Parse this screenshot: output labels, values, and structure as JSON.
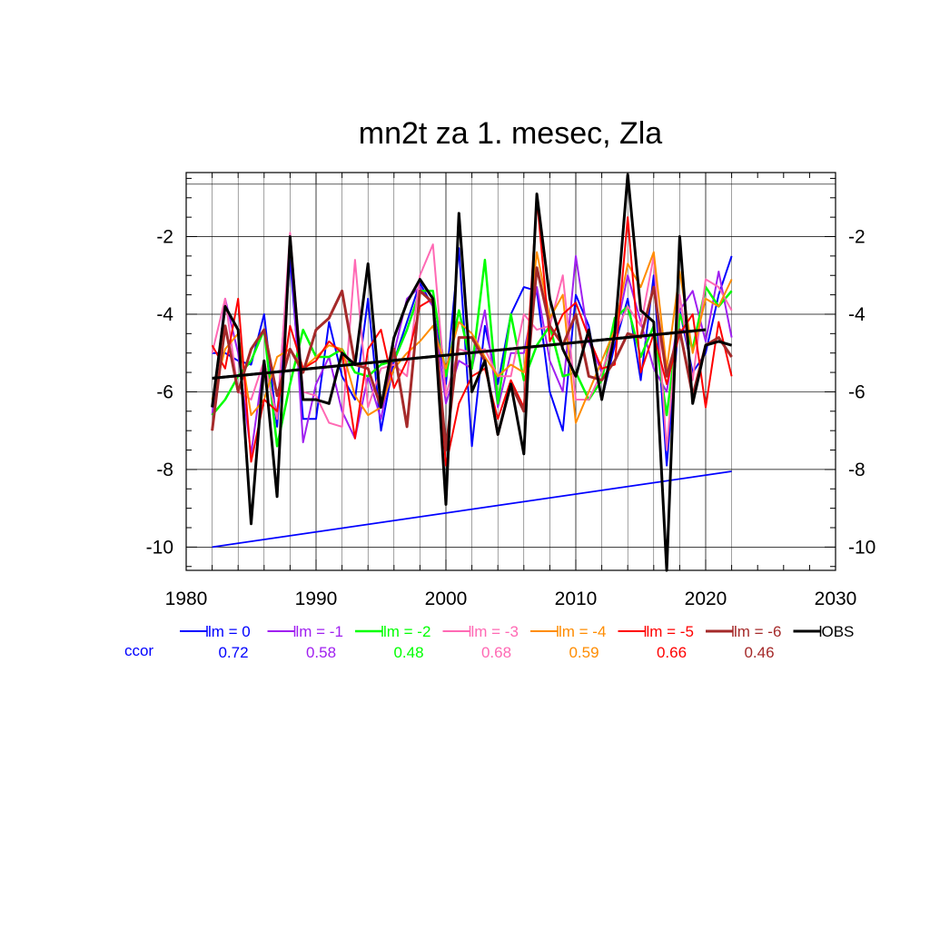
{
  "chart_data": {
    "type": "line",
    "title": "mn2t za 1. mesec, Zla",
    "xlabel": "",
    "ylabel": "",
    "xlim": [
      1980,
      2030
    ],
    "ylim": [
      -10.6,
      -0.35
    ],
    "x_ticks": [
      1980,
      1990,
      2000,
      2010,
      2020,
      2030
    ],
    "y_ticks": [
      -10,
      -8,
      -6,
      -4,
      -2
    ],
    "grid": true,
    "x": [
      1982,
      1983,
      1984,
      1985,
      1986,
      1987,
      1988,
      1989,
      1990,
      1991,
      1992,
      1993,
      1994,
      1995,
      1996,
      1997,
      1998,
      1999,
      2000,
      2001,
      2002,
      2003,
      2004,
      2005,
      2006,
      2007,
      2008,
      2009,
      2010,
      2011,
      2012,
      2013,
      2014,
      2015,
      2016,
      2017,
      2018,
      2019,
      2020,
      2021,
      2022
    ],
    "series": [
      {
        "name": "lm = 0",
        "color": "#0000ff",
        "width": 2,
        "values": [
          -5.0,
          -5.0,
          -5.2,
          -5.3,
          -4.0,
          -6.9,
          -2.6,
          -6.7,
          -6.7,
          -4.2,
          -5.6,
          -6.2,
          -3.6,
          -7.0,
          -5.2,
          -4.2,
          -3.2,
          -3.8,
          -5.8,
          -2.3,
          -7.4,
          -4.3,
          -5.8,
          -4.0,
          -3.3,
          -3.4,
          -6.0,
          -7.0,
          -3.5,
          -4.3,
          -6.2,
          -4.8,
          -3.6,
          -5.7,
          -3.0,
          -7.9,
          -3.9,
          -5.5,
          -5.0,
          -3.5,
          -2.5
        ]
      },
      {
        "name": "lm = -1",
        "color": "#a020f0",
        "width": 2,
        "values": [
          -6.6,
          -3.6,
          -5.0,
          -7.6,
          -5.2,
          -6.6,
          -2.1,
          -7.3,
          -5.8,
          -5.1,
          -6.5,
          -7.2,
          -5.6,
          -6.7,
          -5.0,
          -3.6,
          -3.3,
          -3.8,
          -6.3,
          -5.2,
          -5.4,
          -3.9,
          -6.4,
          -5.0,
          -5.0,
          -3.3,
          -5.2,
          -6.0,
          -2.5,
          -4.7,
          -5.5,
          -4.6,
          -3.0,
          -4.2,
          -5.4,
          -6.0,
          -3.9,
          -3.4,
          -4.7,
          -2.9,
          -4.6
        ]
      },
      {
        "name": "lm = -2",
        "color": "#00ff00",
        "width": 2.5,
        "values": [
          -6.6,
          -6.2,
          -5.6,
          -5.2,
          -4.4,
          -7.4,
          -5.8,
          -4.4,
          -5.1,
          -5.1,
          -4.9,
          -5.5,
          -5.6,
          -5.3,
          -5.2,
          -4.4,
          -3.4,
          -3.4,
          -5.6,
          -3.9,
          -5.4,
          -2.6,
          -6.3,
          -4.0,
          -5.7,
          -4.8,
          -4.3,
          -5.6,
          -5.5,
          -6.2,
          -5.7,
          -4.1,
          -3.8,
          -5.1,
          -4.3,
          -6.6,
          -4.0,
          -4.9,
          -3.3,
          -3.8,
          -3.4
        ]
      },
      {
        "name": "lm = -3",
        "color": "#ff69b4",
        "width": 2,
        "values": [
          -5.0,
          -3.6,
          -6.0,
          -6.2,
          -5.2,
          -6.7,
          -1.9,
          -6.0,
          -6.1,
          -6.8,
          -6.9,
          -2.6,
          -6.4,
          -5.4,
          -5.3,
          -5.6,
          -3.0,
          -2.2,
          -6.1,
          -4.9,
          -5.0,
          -4.9,
          -5.6,
          -5.6,
          -4.0,
          -4.4,
          -4.3,
          -3.0,
          -6.2,
          -6.2,
          -5.5,
          -4.5,
          -3.8,
          -4.3,
          -2.5,
          -7.5,
          -3.5,
          -5.7,
          -3.1,
          -3.3,
          -3.9
        ]
      },
      {
        "name": "lm = -4",
        "color": "#ff8c00",
        "width": 2,
        "values": [
          -6.2,
          -4.9,
          -4.5,
          -6.6,
          -6.2,
          -5.1,
          -4.9,
          -5.4,
          -5.1,
          -4.8,
          -4.9,
          -6.1,
          -6.6,
          -6.4,
          -5.4,
          -5.0,
          -4.7,
          -4.3,
          -5.4,
          -4.2,
          -4.5,
          -5.1,
          -5.6,
          -5.3,
          -5.5,
          -2.4,
          -4.1,
          -3.5,
          -6.8,
          -6.0,
          -5.2,
          -4.4,
          -2.7,
          -3.3,
          -2.4,
          -5.4,
          -2.9,
          -5.0,
          -3.6,
          -3.8,
          -3.1
        ]
      },
      {
        "name": "lm = -5",
        "color": "#ff0000",
        "width": 2,
        "values": [
          -4.8,
          -5.4,
          -3.6,
          -7.8,
          -6.2,
          -6.5,
          -4.3,
          -5.4,
          -5.2,
          -4.7,
          -5.0,
          -7.2,
          -4.9,
          -4.4,
          -5.9,
          -5.2,
          -3.8,
          -3.6,
          -7.9,
          -6.3,
          -5.6,
          -5.4,
          -6.7,
          -5.7,
          -6.4,
          -1.0,
          -4.7,
          -4.0,
          -3.7,
          -4.6,
          -5.4,
          -5.3,
          -1.5,
          -5.5,
          -4.5,
          -5.8,
          -4.5,
          -4.0,
          -6.4,
          -4.2,
          -5.6
        ]
      },
      {
        "name": "lm = -6",
        "color": "#a52a2a",
        "width": 3,
        "values": [
          -7.0,
          -4.3,
          -6.0,
          -4.9,
          -4.4,
          -6.1,
          -4.9,
          -5.5,
          -4.4,
          -4.1,
          -3.4,
          -5.3,
          -5.4,
          -6.4,
          -4.9,
          -6.9,
          -3.4,
          -3.7,
          -7.5,
          -4.6,
          -4.6,
          -5.2,
          -7.1,
          -5.8,
          -6.5,
          -2.8,
          -4.3,
          -4.8,
          -4.0,
          -5.6,
          -5.7,
          -5.2,
          -4.5,
          -4.6,
          -3.3,
          -5.6,
          -4.4,
          -6.1,
          -4.8,
          -4.6,
          -5.1
        ]
      },
      {
        "name": "OBS",
        "color": "#000000",
        "width": 3,
        "values": [
          -6.4,
          -3.8,
          -4.4,
          -9.4,
          -5.2,
          -8.7,
          -2.0,
          -6.2,
          -6.2,
          -6.3,
          -5.0,
          -5.3,
          -2.7,
          -6.4,
          -4.6,
          -3.7,
          -3.1,
          -3.6,
          -8.9,
          -1.4,
          -6.0,
          -5.2,
          -7.1,
          -5.8,
          -7.6,
          -0.9,
          -3.6,
          -4.9,
          -5.6,
          -4.4,
          -6.2,
          -4.5,
          -0.4,
          -3.9,
          -4.2,
          -10.6,
          -2.0,
          -6.3,
          -4.8,
          -4.7,
          -4.8
        ]
      }
    ],
    "trend_lines": [
      {
        "for": "OBS",
        "color": "#000000",
        "width": 3,
        "x": [
          1982,
          2020
        ],
        "y": [
          -5.65,
          -4.4
        ]
      },
      {
        "for": "lm = 0",
        "color": "#0000ff",
        "width": 1.8,
        "x": [
          1982,
          2022
        ],
        "y": [
          -10.0,
          -8.05
        ]
      }
    ],
    "ccor": {
      "label": "ccor",
      "label_color": "#0000ff",
      "values": [
        {
          "value": "0.72",
          "color": "#0000ff"
        },
        {
          "value": "0.58",
          "color": "#a020f0"
        },
        {
          "value": "0.48",
          "color": "#00ff00"
        },
        {
          "value": "0.68",
          "color": "#ff69b4"
        },
        {
          "value": "0.59",
          "color": "#ff8c00"
        },
        {
          "value": "0.66",
          "color": "#ff0000"
        },
        {
          "value": "0.46",
          "color": "#a52a2a"
        }
      ]
    },
    "legend_placement": "bottom"
  }
}
